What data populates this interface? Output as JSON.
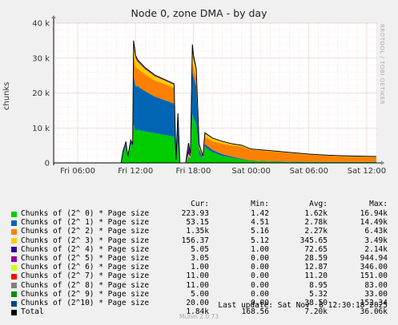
{
  "title": "Node 0, zone DMA - by day",
  "y_axis_label": "chunks",
  "vertical_label": "RRDTOOL / TOBI OETIKER",
  "footer": "Munin 2.0.73",
  "last_update": "Last update: Sat Nov  8 12:30:18 2025",
  "legend_headers": {
    "cur": "Cur:",
    "min": "Min:",
    "avg": "Avg:",
    "max": "Max:"
  },
  "legend": [
    {
      "label": "Chunks of (2^ 0) * Page size",
      "color": "#00cc00",
      "cur": "223.93",
      "min": "1.42",
      "avg": "1.62k",
      "max": "16.94k"
    },
    {
      "label": "Chunks of (2^ 1) * Page size",
      "color": "#0066b3",
      "cur": "53.15",
      "min": "4.51",
      "avg": "2.78k",
      "max": "14.49k"
    },
    {
      "label": "Chunks of (2^ 2) * Page size",
      "color": "#ff8000",
      "cur": "1.35k",
      "min": "5.16",
      "avg": "2.27k",
      "max": "6.43k"
    },
    {
      "label": "Chunks of (2^ 3) * Page size",
      "color": "#ffcc00",
      "cur": "156.37",
      "min": "5.12",
      "avg": "345.65",
      "max": "3.49k"
    },
    {
      "label": "Chunks of (2^ 4) * Page size",
      "color": "#330099",
      "cur": "5.05",
      "min": "1.00",
      "avg": "72.65",
      "max": "2.14k"
    },
    {
      "label": "Chunks of (2^ 5) * Page size",
      "color": "#990099",
      "cur": "3.05",
      "min": "0.00",
      "avg": "28.59",
      "max": "944.94"
    },
    {
      "label": "Chunks of (2^ 6) * Page size",
      "color": "#ccff00",
      "cur": "1.00",
      "min": "0.00",
      "avg": "12.87",
      "max": "346.00"
    },
    {
      "label": "Chunks of (2^ 7) * Page size",
      "color": "#ff0000",
      "cur": "11.00",
      "min": "0.00",
      "avg": "11.20",
      "max": "151.00"
    },
    {
      "label": "Chunks of (2^ 8) * Page size",
      "color": "#808080",
      "cur": "11.00",
      "min": "0.00",
      "avg": "8.95",
      "max": "83.00"
    },
    {
      "label": "Chunks of (2^ 9) * Page size",
      "color": "#008f00",
      "cur": "5.00",
      "min": "0.00",
      "avg": "5.32",
      "max": "33.00"
    },
    {
      "label": "Chunks of (2^10) * Page size",
      "color": "#00487d",
      "cur": "20.00",
      "min": "0.00",
      "avg": "38.50",
      "max": "152.34"
    },
    {
      "label": "Total",
      "color": "#000000",
      "cur": "1.84k",
      "min": "168.56",
      "avg": "7.20k",
      "max": "36.06k"
    }
  ],
  "chart_data": {
    "type": "area",
    "y_ticks": [
      "0",
      "10 k",
      "20 k",
      "30 k",
      "40 k"
    ],
    "y_tick_values": [
      0,
      10000,
      20000,
      30000,
      40000
    ],
    "ylim": [
      0,
      40000
    ],
    "x_ticks": [
      "Fri 06:00",
      "Fri 12:00",
      "Fri 18:00",
      "Sat 00:00",
      "Sat 06:00",
      "Sat 12:00"
    ],
    "x_tick_hours": [
      6,
      12,
      18,
      24,
      30,
      36
    ],
    "xlim_hours": [
      3.5,
      37.0
    ],
    "grid": true,
    "x_hours": [
      3.5,
      10.5,
      10.7,
      11.0,
      11.2,
      11.5,
      11.7,
      11.8,
      12.0,
      12.2,
      13.0,
      14.0,
      15.0,
      16.0,
      16.2,
      16.4,
      16.6,
      17.2,
      17.5,
      17.7,
      17.9,
      18.0,
      18.3,
      18.6,
      19.0,
      19.2,
      20.0,
      21.0,
      22.0,
      23.0,
      24.0,
      26.0,
      28.0,
      30.0,
      32.0,
      34.0,
      37.0
    ],
    "series": [
      {
        "name": "Chunks of (2^ 0) * Page size",
        "values": [
          0,
          0,
          2500,
          4500,
          1500,
          5500,
          4500,
          11000,
          9000,
          9500,
          9000,
          8500,
          8000,
          7500,
          500,
          6000,
          0,
          0,
          1500,
          1000,
          14000,
          13000,
          11000,
          2500,
          1000,
          4500,
          3000,
          2000,
          1500,
          1000,
          600,
          400,
          300,
          250,
          220,
          220,
          220
        ]
      },
      {
        "name": "Chunks of (2^ 1) * Page size",
        "values": [
          0,
          0,
          500,
          1000,
          200,
          700,
          500,
          14000,
          13000,
          12500,
          11500,
          10500,
          10000,
          9500,
          200,
          6000,
          0,
          0,
          300,
          200,
          12500,
          12000,
          11000,
          1500,
          300,
          1000,
          700,
          500,
          300,
          200,
          100,
          80,
          70,
          60,
          55,
          55,
          53
        ]
      },
      {
        "name": "Chunks of (2^ 2) * Page size",
        "values": [
          0,
          0,
          200,
          300,
          100,
          200,
          150,
          6000,
          5500,
          5000,
          4800,
          4600,
          4600,
          4500,
          100,
          1200,
          0,
          0,
          300,
          200,
          2500,
          2500,
          2400,
          800,
          300,
          2000,
          2500,
          3000,
          3200,
          3500,
          3000,
          2800,
          2400,
          2000,
          1700,
          1500,
          1350
        ]
      },
      {
        "name": "Chunks of (2^ 3) * Page size",
        "values": [
          0,
          0,
          100,
          200,
          50,
          100,
          80,
          3000,
          2500,
          2000,
          1500,
          1200,
          1000,
          900,
          50,
          800,
          0,
          0,
          500,
          300,
          3000,
          2500,
          2000,
          500,
          200,
          1000,
          800,
          600,
          400,
          300,
          200,
          180,
          170,
          160,
          158,
          157,
          156
        ]
      },
      {
        "name": "Chunks of (2^ 4) * Page size",
        "values": [
          0,
          0,
          30,
          50,
          10,
          20,
          20,
          400,
          300,
          200,
          150,
          120,
          100,
          90,
          10,
          50,
          0,
          0,
          1500,
          500,
          1000,
          500,
          300,
          50,
          20,
          40,
          30,
          20,
          15,
          10,
          8,
          6,
          6,
          5,
          5,
          5,
          5
        ]
      },
      {
        "name": "Chunks of (2^ 5) * Page size",
        "values": [
          0,
          0,
          10,
          20,
          5,
          10,
          10,
          200,
          150,
          100,
          80,
          60,
          50,
          40,
          5,
          20,
          0,
          0,
          900,
          200,
          400,
          200,
          100,
          20,
          10,
          20,
          15,
          10,
          8,
          6,
          5,
          4,
          4,
          3,
          3,
          3,
          3
        ]
      },
      {
        "name": "Chunks of (2^ 6) * Page size",
        "values": [
          0,
          0,
          5,
          10,
          2,
          5,
          5,
          100,
          80,
          60,
          50,
          40,
          30,
          20,
          2,
          10,
          0,
          0,
          300,
          100,
          200,
          100,
          50,
          10,
          5,
          10,
          8,
          6,
          4,
          3,
          2,
          2,
          1,
          1,
          1,
          1,
          1
        ]
      },
      {
        "name": "Chunks of (2^ 7) * Page size",
        "values": [
          0,
          0,
          5,
          8,
          2,
          5,
          5,
          80,
          60,
          40,
          30,
          25,
          20,
          15,
          2,
          10,
          0,
          0,
          140,
          60,
          120,
          80,
          40,
          12,
          11,
          11,
          11,
          11,
          11,
          11,
          11,
          11,
          11,
          11,
          11,
          11,
          11
        ]
      },
      {
        "name": "Chunks of (2^ 8) * Page size",
        "values": [
          0,
          0,
          4,
          6,
          2,
          4,
          4,
          60,
          50,
          30,
          20,
          15,
          12,
          12,
          2,
          8,
          0,
          0,
          80,
          40,
          60,
          40,
          20,
          11,
          11,
          11,
          11,
          11,
          11,
          11,
          11,
          11,
          11,
          11,
          11,
          11,
          11
        ]
      },
      {
        "name": "Chunks of (2^ 9) * Page size",
        "values": [
          0,
          0,
          2,
          3,
          1,
          2,
          2,
          30,
          25,
          20,
          15,
          10,
          8,
          6,
          1,
          4,
          0,
          0,
          30,
          15,
          25,
          15,
          10,
          5,
          5,
          5,
          5,
          5,
          5,
          5,
          5,
          5,
          5,
          5,
          5,
          5,
          5
        ]
      },
      {
        "name": "Chunks of (2^10) * Page size",
        "values": [
          0,
          0,
          10,
          20,
          5,
          10,
          10,
          150,
          140,
          120,
          100,
          90,
          80,
          70,
          5,
          40,
          0,
          0,
          150,
          60,
          120,
          80,
          50,
          20,
          20,
          20,
          20,
          20,
          20,
          20,
          20,
          20,
          20,
          20,
          20,
          20,
          20
        ]
      }
    ]
  }
}
